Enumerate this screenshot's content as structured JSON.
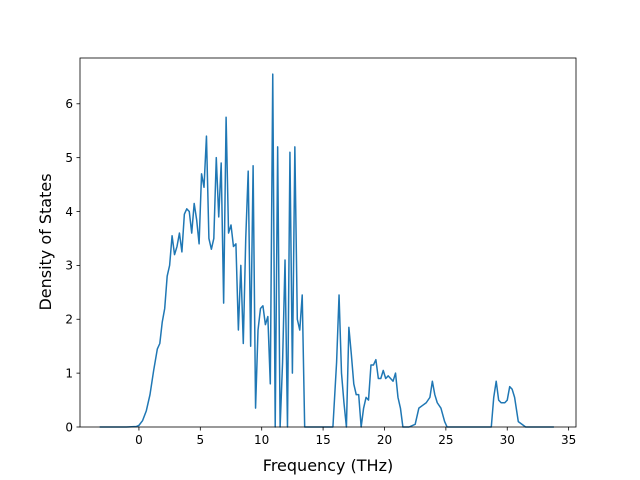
{
  "chart_data": {
    "type": "line",
    "title": "",
    "xlabel": "Frequency (THz)",
    "ylabel": "Density of States",
    "xlim": [
      -4.8,
      35.6
    ],
    "ylim": [
      0,
      6.85
    ],
    "xticks": [
      0,
      5,
      10,
      15,
      20,
      25,
      30,
      35
    ],
    "yticks": [
      0,
      1,
      2,
      3,
      4,
      5,
      6
    ],
    "grid": false,
    "legend": "none",
    "series": [
      {
        "color": "#1f77b4",
        "x": [
          -3.2,
          -1.0,
          -0.2,
          0.0,
          0.3,
          0.6,
          0.9,
          1.2,
          1.5,
          1.7,
          1.9,
          2.1,
          2.3,
          2.5,
          2.7,
          2.9,
          3.1,
          3.3,
          3.5,
          3.7,
          3.9,
          4.1,
          4.3,
          4.5,
          4.7,
          4.9,
          5.1,
          5.3,
          5.5,
          5.7,
          5.9,
          6.1,
          6.3,
          6.5,
          6.7,
          6.9,
          7.1,
          7.3,
          7.5,
          7.7,
          7.9,
          8.1,
          8.3,
          8.5,
          8.7,
          8.9,
          9.1,
          9.3,
          9.5,
          9.7,
          9.9,
          10.1,
          10.3,
          10.5,
          10.7,
          10.9,
          11.1,
          11.3,
          11.5,
          11.7,
          11.9,
          12.1,
          12.3,
          12.5,
          12.7,
          12.9,
          13.1,
          13.3,
          13.5,
          13.7,
          14.0,
          14.5,
          15.0,
          15.5,
          15.8,
          16.1,
          16.3,
          16.5,
          16.7,
          16.9,
          17.1,
          17.3,
          17.5,
          17.7,
          17.9,
          18.1,
          18.3,
          18.5,
          18.7,
          18.9,
          19.1,
          19.3,
          19.5,
          19.7,
          19.9,
          20.1,
          20.3,
          20.5,
          20.7,
          20.9,
          21.1,
          21.3,
          21.5,
          21.7,
          22.0,
          22.5,
          22.8,
          23.1,
          23.4,
          23.7,
          23.9,
          24.1,
          24.3,
          24.6,
          24.9,
          25.1,
          25.4,
          26.0,
          27.0,
          28.0,
          28.7,
          28.9,
          29.1,
          29.3,
          29.5,
          29.8,
          30.0,
          30.2,
          30.4,
          30.6,
          30.9,
          31.5,
          33.8
        ],
        "y": [
          0.0,
          0.0,
          0.01,
          0.03,
          0.12,
          0.3,
          0.6,
          1.05,
          1.45,
          1.55,
          1.95,
          2.2,
          2.8,
          3.0,
          3.55,
          3.2,
          3.35,
          3.6,
          3.25,
          3.95,
          4.05,
          4.0,
          3.6,
          4.15,
          3.85,
          3.4,
          4.7,
          4.45,
          5.4,
          3.5,
          3.3,
          3.5,
          5.0,
          3.9,
          4.9,
          2.3,
          5.75,
          3.6,
          3.75,
          3.35,
          3.4,
          1.8,
          3.0,
          1.55,
          3.5,
          4.75,
          1.5,
          4.85,
          0.35,
          1.8,
          2.2,
          2.25,
          1.9,
          2.05,
          0.8,
          6.55,
          0.0,
          5.2,
          0.0,
          1.2,
          3.1,
          0.0,
          5.1,
          1.0,
          5.2,
          2.0,
          1.8,
          2.45,
          0.0,
          0.0,
          0.0,
          0.0,
          0.0,
          0.0,
          0.0,
          1.2,
          2.45,
          1.0,
          0.45,
          0.0,
          1.85,
          1.35,
          0.8,
          0.6,
          0.6,
          0.0,
          0.35,
          0.55,
          0.5,
          1.15,
          1.15,
          1.25,
          0.9,
          0.9,
          1.05,
          0.9,
          0.95,
          0.9,
          0.85,
          1.0,
          0.55,
          0.35,
          0.0,
          0.0,
          0.0,
          0.05,
          0.35,
          0.4,
          0.45,
          0.55,
          0.85,
          0.6,
          0.45,
          0.35,
          0.1,
          0.0,
          0.0,
          0.0,
          0.0,
          0.0,
          0.0,
          0.55,
          0.85,
          0.5,
          0.45,
          0.45,
          0.5,
          0.75,
          0.7,
          0.55,
          0.1,
          0.0,
          0.0
        ]
      }
    ]
  }
}
